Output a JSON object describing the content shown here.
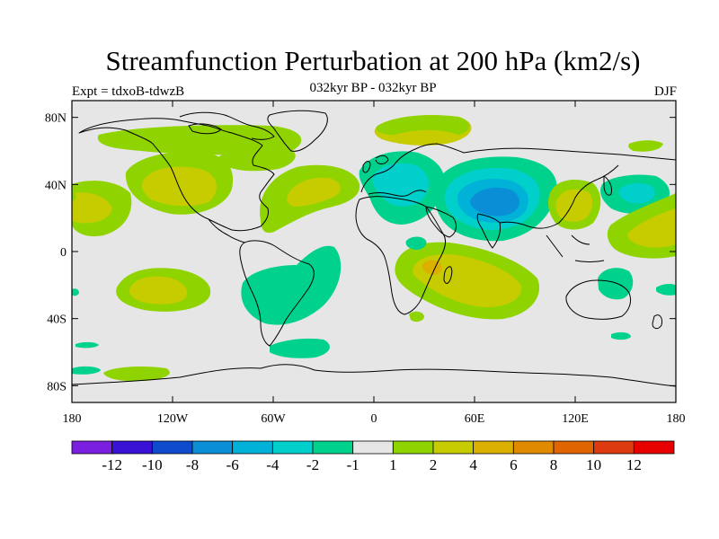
{
  "header": {
    "title": "Streamfunction Perturbation at 200 hPa (km2/s)",
    "subtitle": "032kyr BP - 032kyr BP",
    "experiment": "Expt = tdxoB-tdwzB",
    "season": "DJF"
  },
  "axes": {
    "lat_ticks": [
      {
        "value": 80,
        "label": "80N"
      },
      {
        "value": 40,
        "label": "40N"
      },
      {
        "value": 0,
        "label": "0"
      },
      {
        "value": -40,
        "label": "40S"
      },
      {
        "value": -80,
        "label": "80S"
      }
    ],
    "lon_ticks": [
      {
        "value": -180,
        "label": "180"
      },
      {
        "value": -120,
        "label": "120W"
      },
      {
        "value": -60,
        "label": "60W"
      },
      {
        "value": 0,
        "label": "0"
      },
      {
        "value": 60,
        "label": "60E"
      },
      {
        "value": 120,
        "label": "120E"
      },
      {
        "value": 180,
        "label": "180"
      }
    ]
  },
  "colorbar": {
    "colors": [
      "#7a1fe0",
      "#3a12d6",
      "#0f4ccd",
      "#0a8fd6",
      "#00b2d8",
      "#00cfcc",
      "#00d28e",
      "#e6e6e6",
      "#8fd400",
      "#c7cc00",
      "#dcb000",
      "#e08a00",
      "#e06400",
      "#dd3a10",
      "#e60000"
    ],
    "labels": [
      "-12",
      "-10",
      "-8",
      "-6",
      "-4",
      "-2",
      "-1",
      "1",
      "2",
      "4",
      "6",
      "8",
      "10",
      "12"
    ]
  },
  "chart_data": {
    "type": "heatmap",
    "title": "Streamfunction Perturbation at 200 hPa (km2/s)",
    "subtitle": "032kyr BP - 032kyr BP",
    "projection": "cylindrical equidistant",
    "x_range": [
      -180,
      180
    ],
    "y_range": [
      -90,
      90
    ],
    "levels": [
      -12,
      -10,
      -8,
      -6,
      -4,
      -2,
      -1,
      1,
      2,
      4,
      6,
      8,
      10,
      12
    ],
    "features": [
      {
        "lon": -115,
        "lat": 40,
        "value": 3,
        "sign": "positive",
        "region": "western North America"
      },
      {
        "lon": -170,
        "lat": 30,
        "value": 3,
        "sign": "positive",
        "region": "central North Pacific"
      },
      {
        "lon": -40,
        "lat": 32,
        "value": 2,
        "sign": "positive",
        "region": "subtropical North Atlantic"
      },
      {
        "lon": -25,
        "lat": 70,
        "value": 2,
        "sign": "positive",
        "region": "Greenland / Iceland"
      },
      {
        "lon": 15,
        "lat": 45,
        "value": -3,
        "sign": "negative",
        "region": "Europe / Mediterranean"
      },
      {
        "lon": 75,
        "lat": 30,
        "value": -6,
        "sign": "negative",
        "region": "Central Asia / Tibet"
      },
      {
        "lon": 150,
        "lat": 40,
        "value": -2,
        "sign": "negative",
        "region": "Japan / NW Pacific"
      },
      {
        "lon": 120,
        "lat": 35,
        "value": 2,
        "sign": "positive",
        "region": "East China"
      },
      {
        "lon": 160,
        "lat": 15,
        "value": 2,
        "sign": "positive",
        "region": "tropical West Pacific"
      },
      {
        "lon": 40,
        "lat": -20,
        "value": 3,
        "sign": "positive",
        "region": "southern Africa / Indian Ocean"
      },
      {
        "lon": -40,
        "lat": -20,
        "value": -2,
        "sign": "negative",
        "region": "South Atlantic / Brazil"
      },
      {
        "lon": -140,
        "lat": -20,
        "value": 3,
        "sign": "positive",
        "region": "South Pacific"
      },
      {
        "lon": 135,
        "lat": -25,
        "value": -2,
        "sign": "negative",
        "region": "Australia"
      },
      {
        "lon": -140,
        "lat": -70,
        "value": 2,
        "sign": "positive",
        "region": "Southern Ocean"
      }
    ]
  }
}
